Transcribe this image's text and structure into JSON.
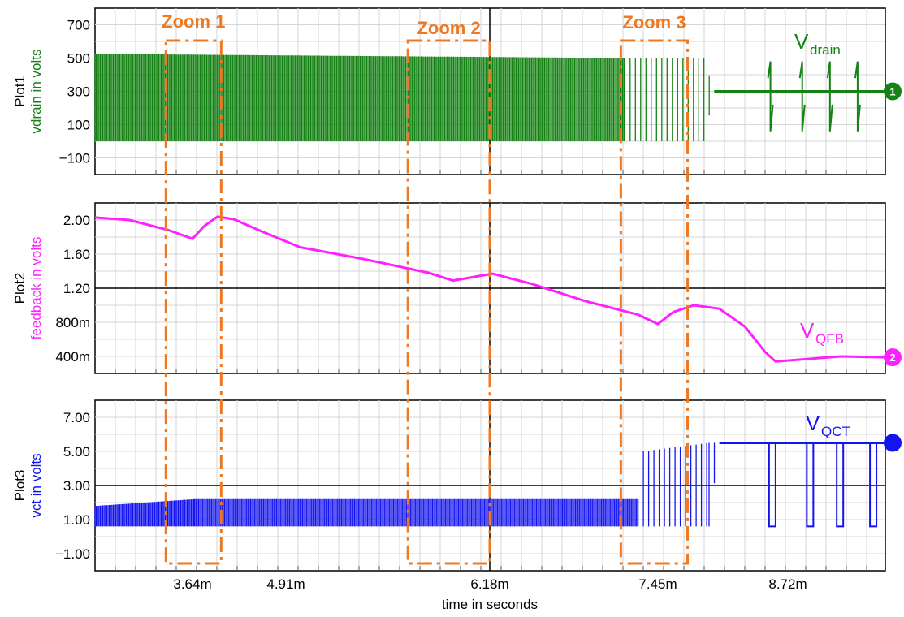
{
  "chart_data": {
    "type": "line",
    "xlabel": "time in seconds",
    "x_ticks": [
      "3.64m",
      "4.91m",
      "6.18m",
      "7.45m",
      "8.72m"
    ],
    "xlim_ms": [
      2.65,
      9.6
    ],
    "zooms": [
      {
        "label": "Zoom 1",
        "x_ms": [
          3.37,
          4.03
        ]
      },
      {
        "label": "Zoom 2",
        "x_ms": [
          5.67,
          6.18
        ]
      },
      {
        "label": "Zoom 3",
        "x_ms": [
          7.17,
          7.74
        ]
      }
    ],
    "plots": [
      {
        "name": "Plot1",
        "ylabel": "vdrain in volts",
        "color": "#148214",
        "trace_label": "V",
        "trace_sub": "drain",
        "marker": "1",
        "ylim": [
          -200,
          800
        ],
        "y_ticks": [
          "700",
          "500",
          "300",
          "100",
          "−100"
        ],
        "bold_gridline_value": null,
        "series": {
          "name": "vdrain",
          "description_points": [
            {
              "t_ms": 2.65,
              "low": 0,
              "high": 525
            },
            {
              "t_ms": 7.2,
              "low": 0,
              "high": 500
            },
            {
              "t_ms": 7.9,
              "low": 0,
              "high": 500
            },
            {
              "t_ms": 8.0,
              "low": 300,
              "high": 300
            },
            {
              "t_ms": 9.6,
              "low": 300,
              "high": 300
            }
          ],
          "spikes_ms": [
            8.55,
            8.85,
            9.1,
            9.35
          ]
        }
      },
      {
        "name": "Plot2",
        "ylabel": "feedback in volts",
        "color": "#ff20ff",
        "trace_label": "V",
        "trace_sub": "QFB",
        "marker": "2",
        "ylim": [
          0.2,
          2.2
        ],
        "y_ticks": [
          "2.00",
          "1.60",
          "1.20",
          "800m",
          "400m"
        ],
        "bold_gridline_value": 1.2,
        "series": {
          "name": "feedback",
          "x_ms": [
            2.65,
            3.0,
            3.4,
            3.52,
            3.64,
            3.8,
            3.98,
            4.2,
            4.6,
            5.0,
            5.4,
            5.8,
            5.95,
            6.2,
            6.5,
            6.9,
            7.3,
            7.45,
            7.6,
            7.8,
            8.05,
            8.3,
            8.5,
            8.6,
            8.8,
            9.2,
            9.6
          ],
          "values": [
            2.03,
            2.0,
            1.88,
            1.83,
            1.78,
            1.93,
            2.04,
            2.01,
            1.86,
            1.68,
            1.54,
            1.38,
            1.29,
            1.37,
            1.25,
            1.05,
            0.89,
            0.78,
            0.92,
            1.0,
            0.96,
            0.75,
            0.45,
            0.34,
            0.36,
            0.4,
            0.39
          ]
        }
      },
      {
        "name": "Plot3",
        "ylabel": "vct in volts",
        "color": "#1414f0",
        "trace_label": "V",
        "trace_sub": "QCT",
        "marker": "",
        "ylim": [
          -2,
          8
        ],
        "y_ticks": [
          "7.00",
          "5.00",
          "3.00",
          "1.00",
          "−1.00"
        ],
        "bold_gridline_value": 3.0,
        "series": {
          "name": "vct",
          "description_points": [
            {
              "t_ms": 2.65,
              "low": 0.6,
              "high": 1.8
            },
            {
              "t_ms": 3.67,
              "low": 0.6,
              "high": 2.2
            },
            {
              "t_ms": 7.3,
              "low": 0.6,
              "high": 2.2
            },
            {
              "t_ms": 7.34,
              "low": 0.6,
              "high": 5.0
            },
            {
              "t_ms": 7.95,
              "low": 0.6,
              "high": 5.5
            },
            {
              "t_ms": 8.05,
              "low": 5.5,
              "high": 5.5
            },
            {
              "t_ms": 9.6,
              "low": 5.5,
              "high": 5.5
            }
          ],
          "dips_ms": [
            8.6,
            8.95,
            9.22,
            9.52
          ]
        }
      }
    ]
  }
}
